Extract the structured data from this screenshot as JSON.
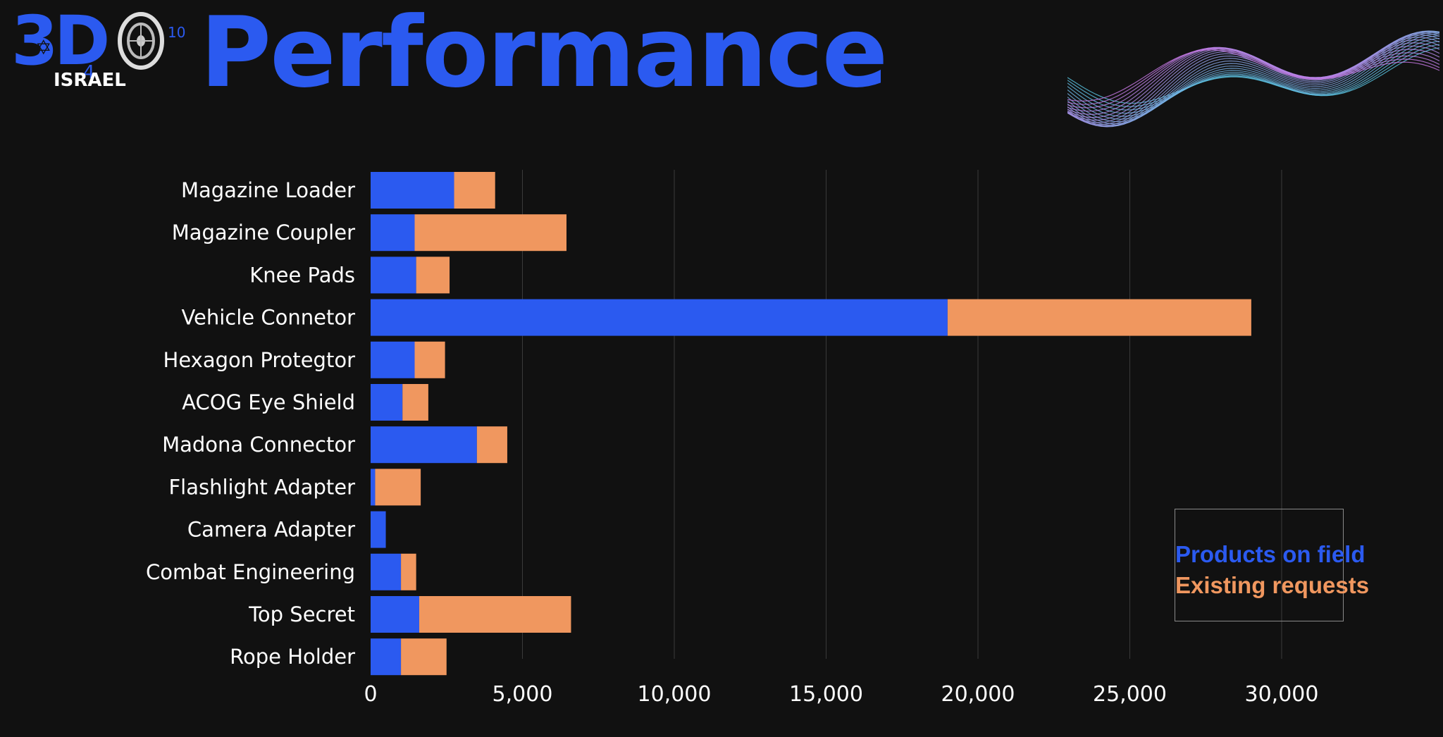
{
  "page": {
    "title": "Performance",
    "logo": {
      "main": "3D",
      "sub": "ISRAEL",
      "number": "4",
      "superscript": "10",
      "star_glyph": "✡"
    },
    "colors": {
      "background": "#111111",
      "accent": "#2B5AF0",
      "secondary": "#F0975F",
      "text": "#FFFFFF",
      "grid": "#3A3A3A"
    }
  },
  "chart_data": {
    "type": "bar",
    "orientation": "horizontal",
    "stacked": true,
    "categories": [
      "Magazine Loader",
      "Magazine Coupler",
      "Knee Pads",
      "Vehicle Connetor",
      "Hexagon Protegtor",
      "ACOG Eye Shield",
      "Madona Connector",
      "Flashlight Adapter",
      "Camera Adapter",
      "Combat Engineering",
      "Top Secret",
      "Rope Holder"
    ],
    "series": [
      {
        "name": "Products on field",
        "color": "#2B5AF0",
        "values": [
          2750,
          1450,
          1500,
          19000,
          1450,
          1050,
          3500,
          150,
          500,
          1000,
          1600,
          1000
        ]
      },
      {
        "name": "Existing requests",
        "color": "#F0975F",
        "values": [
          1350,
          5000,
          1100,
          10000,
          1000,
          850,
          1000,
          1500,
          0,
          500,
          5000,
          1500
        ]
      }
    ],
    "xlim": [
      0,
      35000
    ],
    "xticks": [
      0,
      5000,
      10000,
      15000,
      20000,
      25000,
      30000
    ],
    "xtick_labels": [
      "0",
      "5,000",
      "10,000",
      "15,000",
      "20,000",
      "25,000",
      "30,000"
    ],
    "grid": "vertical",
    "legend": {
      "placement": "bottom-right",
      "entries": [
        "Products on field",
        "Existing requests"
      ]
    }
  }
}
